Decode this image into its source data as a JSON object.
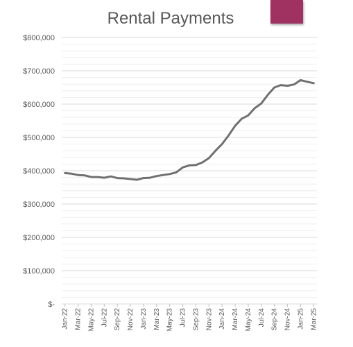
{
  "chart_data": {
    "type": "line",
    "title": "Rental Payments",
    "xlabel": "",
    "ylabel": "",
    "ylim": [
      0,
      800000
    ],
    "y_ticks": [
      0,
      100000,
      200000,
      300000,
      400000,
      500000,
      600000,
      700000,
      800000
    ],
    "y_tick_labels": [
      "$-",
      "$100,000",
      "$200,000",
      "$300,000",
      "$400,000",
      "$500,000",
      "$600,000",
      "$700,000",
      "$800,000"
    ],
    "grid": true,
    "legend": "none",
    "x_tick_labels": [
      "Jan-22",
      "Mar-22",
      "May-22",
      "Jul-22",
      "Sep-22",
      "Nov-22",
      "Jan-23",
      "Mar-23",
      "May-23",
      "Jul-23",
      "Sep-23",
      "Nov-23",
      "Jan-24",
      "Mar-24",
      "May-24",
      "Jul-24",
      "Sep-24",
      "Nov-24",
      "Jan-25",
      "Mar-25"
    ],
    "x": [
      "Jan-22",
      "Feb-22",
      "Mar-22",
      "Apr-22",
      "May-22",
      "Jun-22",
      "Jul-22",
      "Aug-22",
      "Sep-22",
      "Oct-22",
      "Nov-22",
      "Dec-22",
      "Jan-23",
      "Feb-23",
      "Mar-23",
      "Apr-23",
      "May-23",
      "Jun-23",
      "Jul-23",
      "Aug-23",
      "Sep-23",
      "Oct-23",
      "Nov-23",
      "Dec-23",
      "Jan-24",
      "Feb-24",
      "Mar-24",
      "Apr-24",
      "May-24",
      "Jun-24",
      "Jul-24",
      "Aug-24",
      "Sep-24",
      "Oct-24",
      "Nov-24",
      "Dec-24",
      "Jan-25",
      "Feb-25",
      "Mar-25"
    ],
    "series": [
      {
        "values": [
          393000,
          391000,
          387000,
          386000,
          381000,
          381000,
          379000,
          383000,
          378000,
          377000,
          375000,
          373000,
          378000,
          379000,
          384000,
          387000,
          390000,
          395000,
          410000,
          416000,
          417000,
          425000,
          438000,
          460000,
          480000,
          506000,
          535000,
          556000,
          566000,
          588000,
          602000,
          628000,
          650000,
          657000,
          655000,
          659000,
          672000,
          667000,
          663000
        ]
      }
    ],
    "colors": {
      "line": "#707070",
      "grid": "#d9d9d9",
      "accent": "#a03262"
    }
  }
}
